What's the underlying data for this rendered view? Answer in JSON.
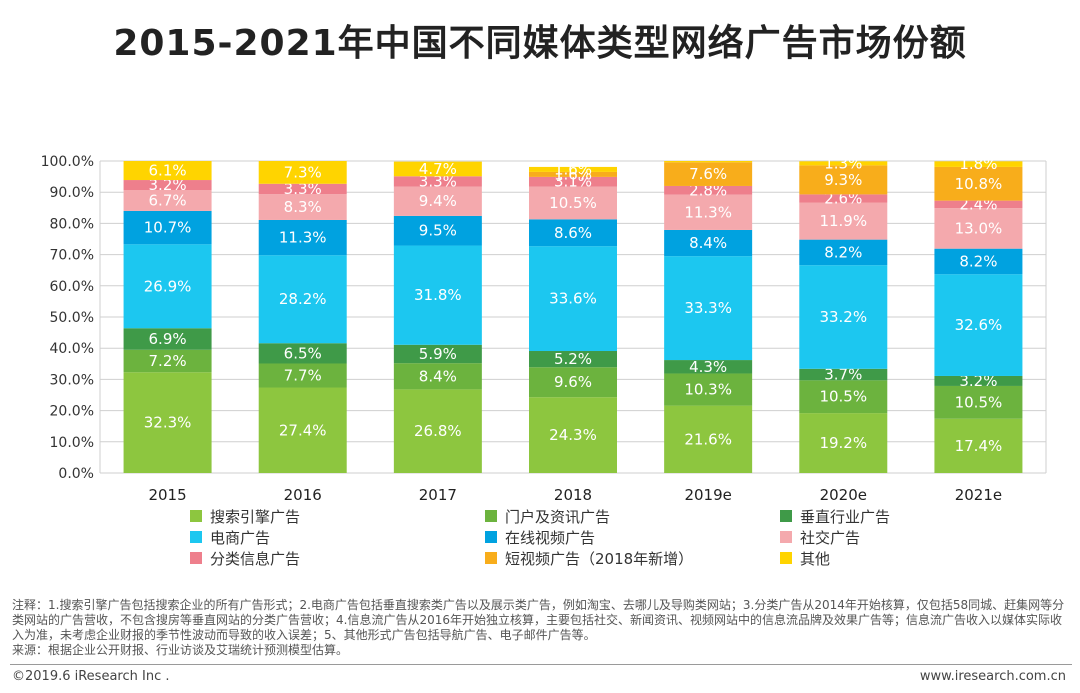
{
  "title": "2015-2021年中国不同媒体类型网络广告市场份额",
  "chart_data": {
    "type": "bar",
    "stacked": true,
    "categories": [
      "2015",
      "2016",
      "2017",
      "2018",
      "2019e",
      "2020e",
      "2021e"
    ],
    "ylim": [
      0,
      100
    ],
    "y_tick_labels": [
      "0.0%",
      "10.0%",
      "20.0%",
      "30.0%",
      "40.0%",
      "50.0%",
      "60.0%",
      "70.0%",
      "80.0%",
      "90.0%",
      "100.0%"
    ],
    "grid": "horizontal",
    "legend_position": "bottom",
    "series": [
      {
        "name": "搜索引擎广告",
        "color": "#8dc63f",
        "values": [
          32.3,
          27.4,
          26.8,
          24.3,
          21.6,
          19.2,
          17.4
        ]
      },
      {
        "name": "门户及资讯广告",
        "color": "#6cb33e",
        "values": [
          7.2,
          7.7,
          8.4,
          9.6,
          10.3,
          10.5,
          10.5
        ]
      },
      {
        "name": "垂直行业广告",
        "color": "#3f9a48",
        "values": [
          6.9,
          6.5,
          5.9,
          5.2,
          4.3,
          3.7,
          3.2
        ]
      },
      {
        "name": "电商广告",
        "color": "#1cc7f0",
        "values": [
          26.9,
          28.2,
          31.8,
          33.6,
          33.3,
          33.2,
          32.6
        ]
      },
      {
        "name": "在线视频广告",
        "color": "#00a2e0",
        "values": [
          10.7,
          11.3,
          9.5,
          8.6,
          8.4,
          8.2,
          8.2
        ]
      },
      {
        "name": "社交广告",
        "color": "#f4a9ad",
        "values": [
          6.7,
          8.3,
          9.4,
          10.5,
          11.3,
          11.9,
          13.0
        ]
      },
      {
        "name": "分类信息广告",
        "color": "#ee7f8c",
        "values": [
          3.2,
          3.3,
          3.3,
          3.1,
          2.8,
          2.6,
          2.4
        ]
      },
      {
        "name": "短视频广告（2018年新增）",
        "color": "#f8ad1b",
        "values": [
          null,
          null,
          null,
          1.6,
          7.6,
          9.3,
          10.8
        ]
      },
      {
        "name": "其他",
        "color": "#ffd400",
        "values": [
          6.1,
          7.3,
          4.7,
          1.6,
          0.5,
          1.3,
          1.8
        ]
      }
    ],
    "data_labels": [
      [
        "32.3%",
        "7.2%",
        "6.9%",
        "26.9%",
        "10.7%",
        "6.7%",
        "3.2%",
        "",
        "6.1%"
      ],
      [
        "27.4%",
        "7.7%",
        "6.5%",
        "28.2%",
        "11.3%",
        "8.3%",
        "3.3%",
        "",
        "7.3%"
      ],
      [
        "26.8%",
        "8.4%",
        "5.9%",
        "31.8%",
        "9.5%",
        "9.4%",
        "3.3%",
        "",
        "4.7%"
      ],
      [
        "24.3%",
        "9.6%",
        "5.2%",
        "33.6%",
        "8.6%",
        "10.5%",
        "3.1%",
        "1.6%",
        "1.6%"
      ],
      [
        "21.6%",
        "10.3%",
        "4.3%",
        "33.3%",
        "8.4%",
        "11.3%",
        "2.8%",
        "7.6%",
        ""
      ],
      [
        "19.2%",
        "10.5%",
        "3.7%",
        "33.2%",
        "8.2%",
        "11.9%",
        "2.6%",
        "9.3%",
        "1.3%"
      ],
      [
        "17.4%",
        "10.5%",
        "3.2%",
        "32.6%",
        "8.2%",
        "13.0%",
        "2.4%",
        "10.8%",
        "1.8%"
      ]
    ]
  },
  "notes": {
    "line1": "注释：1.搜索引擎广告包括搜索企业的所有广告形式；2.电商广告包括垂直搜索类广告以及展示类广告，例如淘宝、去哪儿及导购类网站；3.分类广告从2014年开始核算，仅包括58同城、赶集网等分类网站的广告营收，不包含搜房等垂直网站的分类广告营收；4.信息流广告从2016年开始独立核算，主要包括社交、新闻资讯、视频网站中的信息流品牌及效果广告等；信息流广告收入以媒体实际收入为准，未考虑企业财报的季节性波动而导致的收入误差；5、其他形式广告包括导航广告、电子邮件广告等。",
    "source": "来源：根据企业公开财报、行业访谈及艾瑞统计预测模型估算。"
  },
  "footer": {
    "copyright": "©2019.6 iResearch Inc .",
    "site": "www.iresearch.com.cn"
  }
}
